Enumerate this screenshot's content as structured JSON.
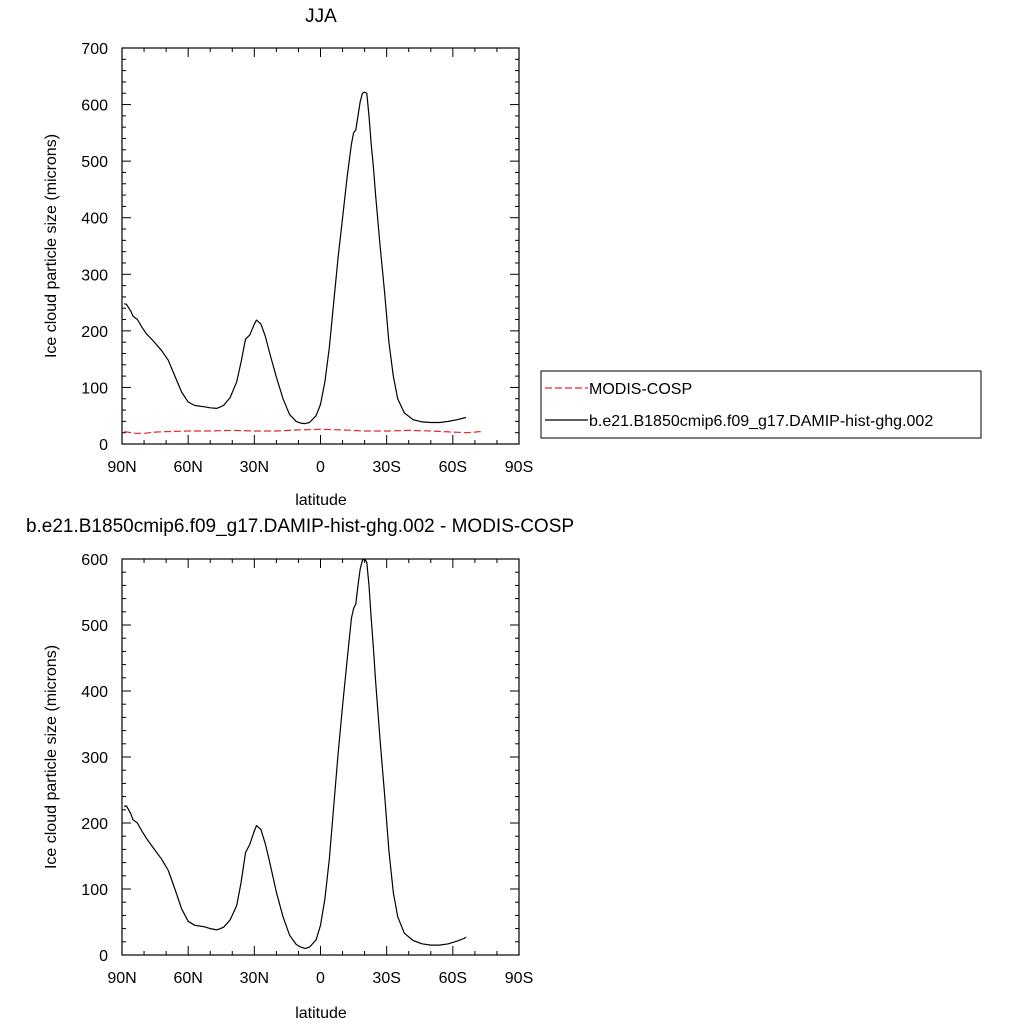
{
  "chart_data": [
    {
      "type": "line",
      "title": "JJA",
      "xlabel": "latitude",
      "ylabel": "Ice cloud particle size (microns)",
      "xlim": [
        90,
        -90
      ],
      "ylim": [
        0,
        700
      ],
      "x_tick_values": [
        90,
        60,
        30,
        0,
        -30,
        -60,
        -90
      ],
      "x_tick_labels": [
        "90N",
        "60N",
        "30N",
        "0",
        "30S",
        "60S",
        "90S"
      ],
      "y_tick_values": [
        0,
        100,
        200,
        300,
        400,
        500,
        600,
        700
      ],
      "y_tick_labels": [
        "0",
        "100",
        "200",
        "300",
        "400",
        "500",
        "600",
        "700"
      ],
      "grid": false,
      "legend_position": "right",
      "series": [
        {
          "name": "MODIS-COSP",
          "color": "#e8262b",
          "dash": "dashed",
          "points": [
            [
              89,
              22
            ],
            [
              84,
              19
            ],
            [
              80,
              19
            ],
            [
              75,
              21
            ],
            [
              70,
              22
            ],
            [
              60,
              23
            ],
            [
              50,
              23
            ],
            [
              40,
              24
            ],
            [
              30,
              23
            ],
            [
              20,
              23
            ],
            [
              10,
              25
            ],
            [
              0,
              26
            ],
            [
              -10,
              25
            ],
            [
              -20,
              23
            ],
            [
              -30,
              23
            ],
            [
              -40,
              24
            ],
            [
              -50,
              23
            ],
            [
              -60,
              21
            ],
            [
              -66,
              20
            ],
            [
              -70,
              21
            ],
            [
              -72,
              22
            ],
            [
              -74,
              20
            ]
          ]
        },
        {
          "name": "b.e21.B1850cmip6.f09_g17.DAMIP-hist-ghg.002",
          "color": "#000000",
          "dash": "solid",
          "points": [
            [
              89,
              248
            ],
            [
              88,
              247
            ],
            [
              86,
              235
            ],
            [
              85,
              226
            ],
            [
              83,
              220
            ],
            [
              81,
              207
            ],
            [
              79,
              195
            ],
            [
              76,
              183
            ],
            [
              72,
              165
            ],
            [
              69,
              148
            ],
            [
              66,
              120
            ],
            [
              63,
              92
            ],
            [
              60,
              74
            ],
            [
              57,
              68
            ],
            [
              53,
              66
            ],
            [
              50,
              64
            ],
            [
              47,
              63
            ],
            [
              44,
              68
            ],
            [
              41,
              82
            ],
            [
              38,
              110
            ],
            [
              36,
              145
            ],
            [
              34,
              185
            ],
            [
              32,
              193
            ],
            [
              30,
              212
            ],
            [
              29,
              219
            ],
            [
              27,
              212
            ],
            [
              25,
              190
            ],
            [
              23,
              160
            ],
            [
              20,
              118
            ],
            [
              17,
              80
            ],
            [
              14,
              52
            ],
            [
              11,
              40
            ],
            [
              9,
              37
            ],
            [
              7,
              36
            ],
            [
              5,
              38
            ],
            [
              2,
              50
            ],
            [
              0,
              70
            ],
            [
              -2,
              110
            ],
            [
              -4,
              170
            ],
            [
              -6,
              250
            ],
            [
              -8,
              330
            ],
            [
              -10,
              400
            ],
            [
              -12,
              470
            ],
            [
              -14,
              530
            ],
            [
              -15,
              550
            ],
            [
              -16,
              555
            ],
            [
              -17,
              580
            ],
            [
              -18,
              605
            ],
            [
              -19,
              620
            ],
            [
              -20,
              622
            ],
            [
              -21,
              620
            ],
            [
              -22,
              580
            ],
            [
              -23,
              530
            ],
            [
              -24,
              490
            ],
            [
              -25,
              440
            ],
            [
              -27,
              350
            ],
            [
              -29,
              270
            ],
            [
              -31,
              180
            ],
            [
              -33,
              120
            ],
            [
              -35,
              80
            ],
            [
              -38,
              55
            ],
            [
              -42,
              43
            ],
            [
              -46,
              39
            ],
            [
              -50,
              38
            ],
            [
              -54,
              38
            ],
            [
              -58,
              40
            ],
            [
              -62,
              43
            ],
            [
              -65,
              46
            ],
            [
              -66,
              47
            ]
          ]
        }
      ]
    },
    {
      "type": "line",
      "title": "b.e21.B1850cmip6.f09_g17.DAMIP-hist-ghg.002 - MODIS-COSP",
      "xlabel": "latitude",
      "ylabel": "Ice cloud particle size (microns)",
      "xlim": [
        90,
        -90
      ],
      "ylim": [
        0,
        600
      ],
      "x_tick_values": [
        90,
        60,
        30,
        0,
        -30,
        -60,
        -90
      ],
      "x_tick_labels": [
        "90N",
        "60N",
        "30N",
        "0",
        "30S",
        "60S",
        "90S"
      ],
      "y_tick_values": [
        0,
        100,
        200,
        300,
        400,
        500,
        600
      ],
      "y_tick_labels": [
        "0",
        "100",
        "200",
        "300",
        "400",
        "500",
        "600"
      ],
      "grid": false,
      "series": [
        {
          "color": "#000000",
          "dash": "solid",
          "points": [
            [
              89,
              225
            ],
            [
              88,
              226
            ],
            [
              86,
              214
            ],
            [
              85,
              205
            ],
            [
              83,
              200
            ],
            [
              81,
              188
            ],
            [
              79,
              177
            ],
            [
              76,
              163
            ],
            [
              72,
              145
            ],
            [
              69,
              128
            ],
            [
              66,
              100
            ],
            [
              63,
              70
            ],
            [
              60,
              51
            ],
            [
              57,
              45
            ],
            [
              53,
              43
            ],
            [
              50,
              40
            ],
            [
              47,
              38
            ],
            [
              44,
              42
            ],
            [
              41,
              53
            ],
            [
              38,
              75
            ],
            [
              36,
              110
            ],
            [
              34,
              155
            ],
            [
              32,
              168
            ],
            [
              30,
              188
            ],
            [
              29,
              196
            ],
            [
              27,
              190
            ],
            [
              25,
              168
            ],
            [
              23,
              140
            ],
            [
              20,
              95
            ],
            [
              17,
              58
            ],
            [
              14,
              30
            ],
            [
              11,
              16
            ],
            [
              9,
              12
            ],
            [
              7,
              10
            ],
            [
              5,
              12
            ],
            [
              2,
              23
            ],
            [
              0,
              45
            ],
            [
              -2,
              85
            ],
            [
              -4,
              145
            ],
            [
              -6,
              225
            ],
            [
              -8,
              305
            ],
            [
              -10,
              378
            ],
            [
              -12,
              445
            ],
            [
              -14,
              510
            ],
            [
              -15,
              525
            ],
            [
              -16,
              532
            ],
            [
              -17,
              560
            ],
            [
              -18,
              585
            ],
            [
              -19,
              598
            ],
            [
              -20,
              600
            ],
            [
              -21,
              595
            ],
            [
              -22,
              560
            ],
            [
              -23,
              510
            ],
            [
              -24,
              465
            ],
            [
              -25,
              415
            ],
            [
              -27,
              325
            ],
            [
              -29,
              245
            ],
            [
              -31,
              158
            ],
            [
              -33,
              95
            ],
            [
              -35,
              58
            ],
            [
              -38,
              33
            ],
            [
              -42,
              22
            ],
            [
              -46,
              17
            ],
            [
              -50,
              15
            ],
            [
              -54,
              15
            ],
            [
              -58,
              17
            ],
            [
              -62,
              21
            ],
            [
              -65,
              25
            ],
            [
              -66,
              27
            ]
          ]
        }
      ]
    }
  ]
}
